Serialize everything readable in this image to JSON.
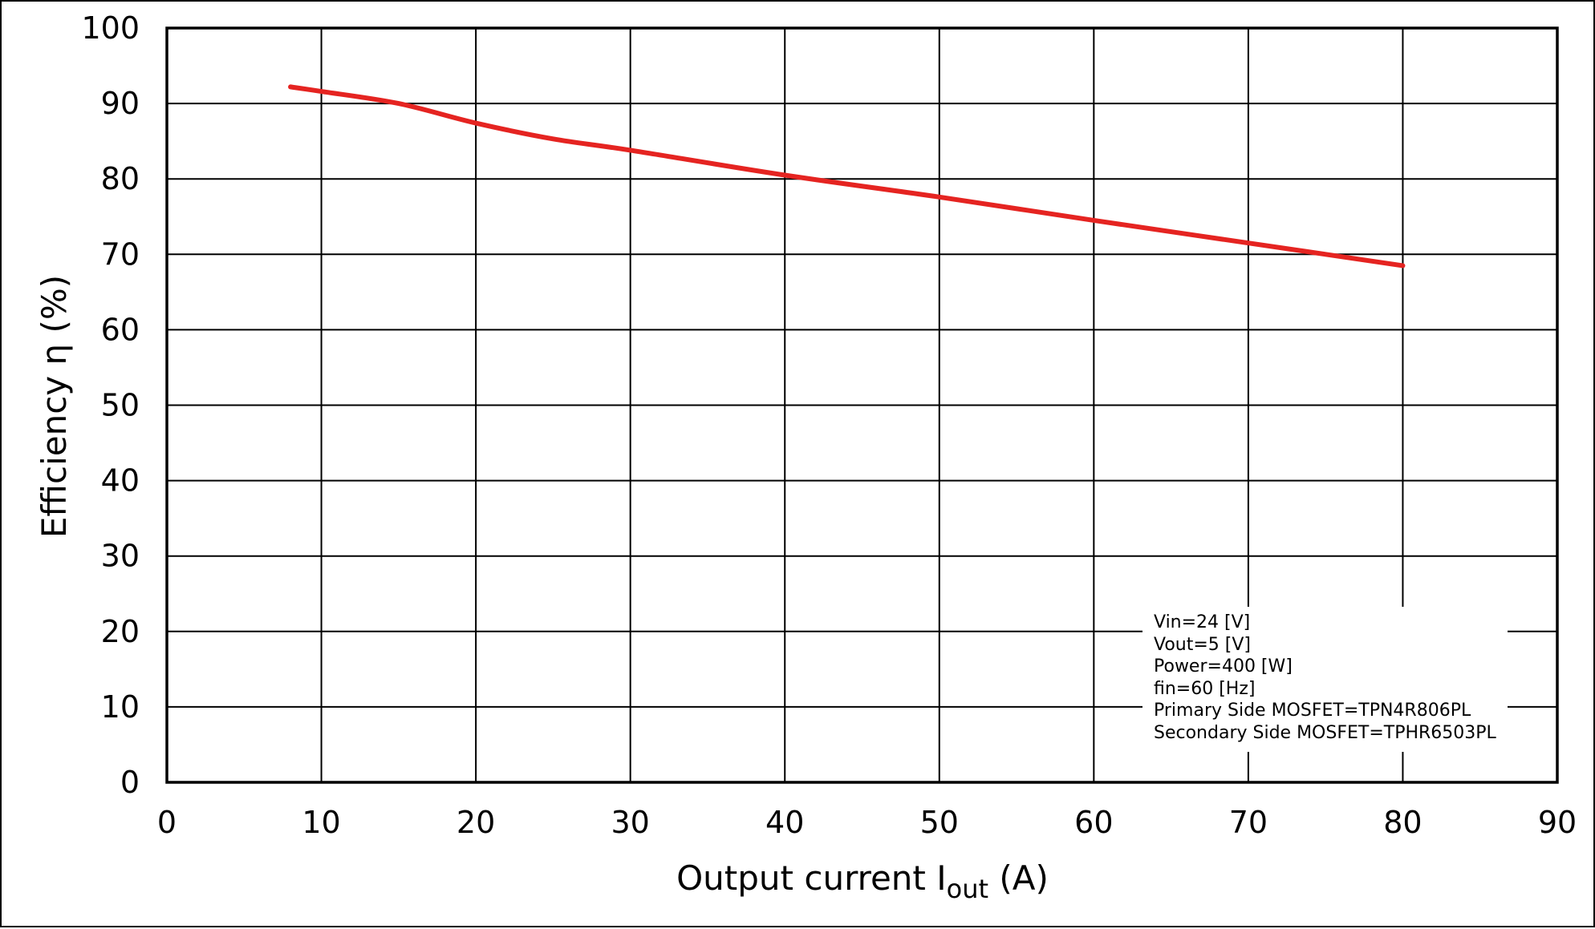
{
  "chart_data": {
    "type": "line",
    "title": "",
    "xlabel": "Output current  I_out (A)",
    "xlabel_main": "Output current  I",
    "xlabel_sub": "out",
    "xlabel_unit": " (A)",
    "ylabel": "Efficiency  η (%)",
    "xlim": [
      0,
      90
    ],
    "ylim": [
      0,
      100
    ],
    "xticks": [
      0,
      10,
      20,
      30,
      40,
      50,
      60,
      70,
      80,
      90
    ],
    "yticks": [
      0,
      10,
      20,
      30,
      40,
      50,
      60,
      70,
      80,
      90,
      100
    ],
    "grid": true,
    "series": [
      {
        "name": "Efficiency",
        "color": "#e52421",
        "x": [
          8,
          10,
          15,
          20,
          25,
          30,
          40,
          50,
          60,
          70,
          80
        ],
        "y": [
          92.2,
          91.6,
          90.0,
          87.4,
          85.3,
          83.8,
          80.5,
          77.6,
          74.5,
          71.5,
          68.5
        ]
      }
    ],
    "annotations": [
      "Vin=24 [V]",
      "Vout=5 [V]",
      "Power=400 [W]",
      "fin=60 [Hz]",
      "Primary Side MOSFET=TPN4R806PL",
      "Secondary Side MOSFET=TPHR6503PL"
    ]
  },
  "conditions": {
    "vin": "Vin=24 [V]",
    "vout": "Vout=5 [V]",
    "power": "Power=400 [W]",
    "fin": "fin=60 [Hz]",
    "primary": "Primary Side MOSFET=TPN4R806PL",
    "secondary": "Secondary Side MOSFET=TPHR6503PL"
  },
  "labels": {
    "y_axis": "Efficiency  η (%)",
    "x_axis_main": "Output current  I",
    "x_axis_sub": "out",
    "x_axis_unit": " (A)"
  }
}
